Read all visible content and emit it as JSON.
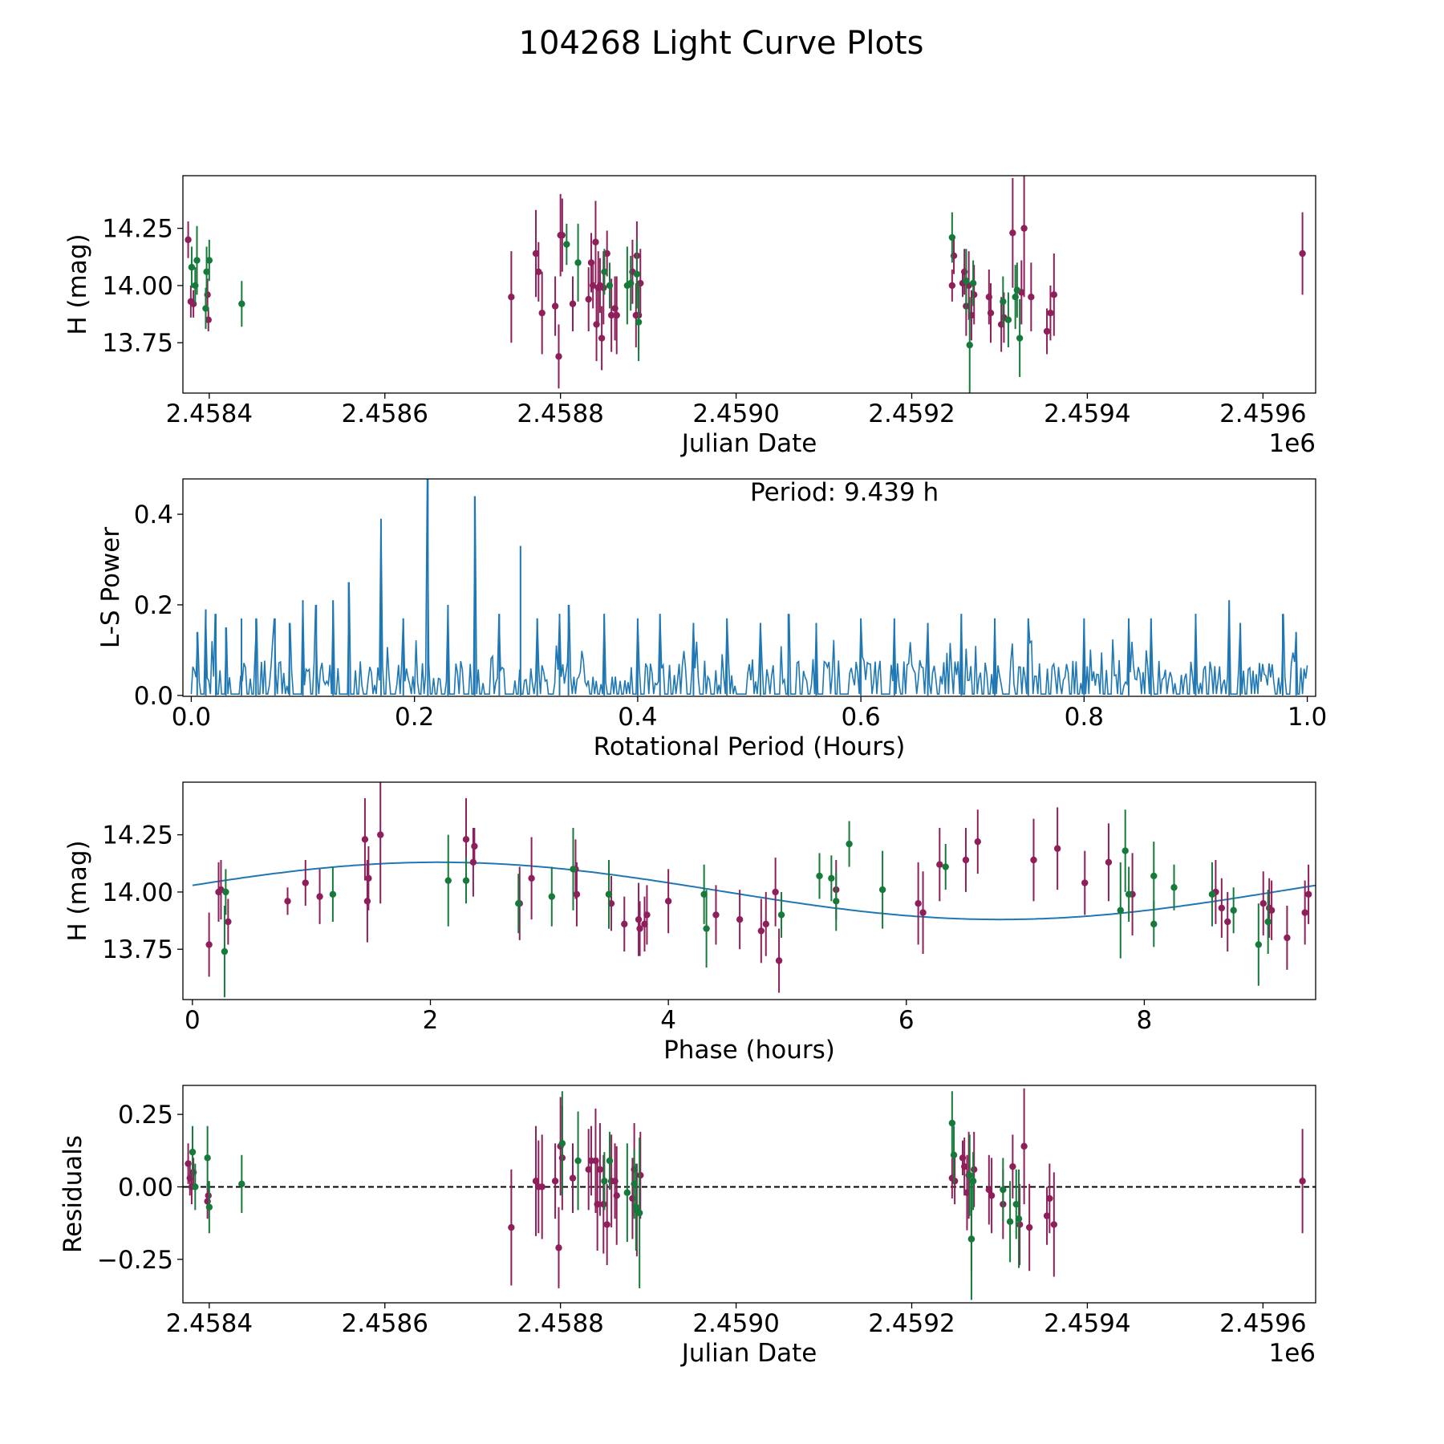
{
  "figure": {
    "title": "104268 Light Curve Plots",
    "colors": {
      "series_a": "#8e1f5a",
      "series_b": "#167a3a",
      "line": "#1f77b4",
      "axis": "#000000"
    }
  },
  "chart_data": [
    {
      "id": "lightcurve",
      "type": "scatter",
      "title": "",
      "xlabel": "Julian Date",
      "ylabel": "H (mag)",
      "xlim": [
        2458370,
        2459660
      ],
      "ylim": [
        13.53,
        14.48
      ],
      "xticks": [
        2458400,
        2458600,
        2458800,
        2459000,
        2459200,
        2459400,
        2459600
      ],
      "xtick_labels": [
        "2.4584",
        "2.4586",
        "2.4588",
        "2.4590",
        "2.4592",
        "2.4594",
        "2.4596"
      ],
      "offset_label": "1e6",
      "yticks": [
        13.75,
        14.0,
        14.25
      ],
      "ytick_labels": [
        "13.75",
        "14.00",
        "14.25"
      ],
      "series": [
        {
          "name": "series_a",
          "x": [
            2458376,
            2458379,
            2458382,
            2458398,
            2458399,
            2458744,
            2458772,
            2458775,
            2458779,
            2458794,
            2458798,
            2458800,
            2458802,
            2458814,
            2458832,
            2458835,
            2458837,
            2458840,
            2458841,
            2458843,
            2458845,
            2458847,
            2458849,
            2458853,
            2458858,
            2458862,
            2458864,
            2458882,
            2458886,
            2458887,
            2458889,
            2458891,
            2459246,
            2459248,
            2459258,
            2459260,
            2459262,
            2459265,
            2459268,
            2459271,
            2459288,
            2459290,
            2459302,
            2459305,
            2459315,
            2459325,
            2459328,
            2459336,
            2459354,
            2459358,
            2459362,
            2459645
          ],
          "y": [
            14.2,
            13.93,
            13.92,
            13.96,
            13.85,
            13.95,
            14.14,
            14.06,
            13.88,
            13.91,
            13.69,
            14.22,
            14.22,
            13.92,
            13.94,
            14.1,
            14.0,
            14.19,
            13.83,
            13.99,
            14.0,
            13.77,
            13.99,
            14.14,
            13.87,
            13.9,
            13.87,
            14.06,
            13.87,
            14.13,
            13.87,
            14.01,
            14.0,
            14.13,
            14.01,
            14.06,
            13.91,
            14.0,
            13.87,
            13.96,
            13.95,
            13.88,
            13.83,
            13.86,
            14.23,
            13.97,
            14.25,
            13.95,
            13.8,
            13.88,
            13.96,
            14.14
          ],
          "err": [
            0.08,
            0.07,
            0.06,
            0.07,
            0.05,
            0.2,
            0.19,
            0.13,
            0.18,
            0.13,
            0.14,
            0.18,
            0.16,
            0.12,
            0.14,
            0.13,
            0.1,
            0.18,
            0.16,
            0.16,
            0.12,
            0.14,
            0.16,
            0.1,
            0.16,
            0.14,
            0.17,
            0.14,
            0.14,
            0.15,
            0.15,
            0.15,
            0.07,
            0.08,
            0.06,
            0.1,
            0.13,
            0.15,
            0.11,
            0.13,
            0.12,
            0.13,
            0.12,
            0.11,
            0.24,
            0.14,
            0.3,
            0.15,
            0.1,
            0.12,
            0.18,
            0.18
          ]
        },
        {
          "name": "series_b",
          "x": [
            2458380,
            2458384,
            2458386,
            2458396,
            2458397,
            2458400,
            2458437,
            2458807,
            2458820,
            2458850,
            2458856,
            2458876,
            2458880,
            2458887,
            2458889,
            2459246,
            2459262,
            2459266,
            2459270,
            2459304,
            2459310,
            2459318,
            2459320,
            2459323
          ],
          "y": [
            14.08,
            14.0,
            14.11,
            13.9,
            14.06,
            14.11,
            13.92,
            14.18,
            14.1,
            14.06,
            14.0,
            14.0,
            14.01,
            14.05,
            13.84,
            14.21,
            14.02,
            13.74,
            14.01,
            13.93,
            13.85,
            13.95,
            13.98,
            13.77
          ],
          "err": [
            0.09,
            0.08,
            0.15,
            0.09,
            0.11,
            0.09,
            0.1,
            0.09,
            0.17,
            0.1,
            0.1,
            0.17,
            0.12,
            0.15,
            0.17,
            0.11,
            0.14,
            0.21,
            0.1,
            0.11,
            0.12,
            0.14,
            0.12,
            0.17
          ]
        }
      ]
    },
    {
      "id": "periodogram",
      "type": "line",
      "title": "",
      "xlabel": "Rotational Period (Hours)",
      "ylabel": "L-S Power",
      "xlim": [
        -0.0075,
        1.0075
      ],
      "ylim": [
        -0.002,
        0.478
      ],
      "xticks": [
        0.0,
        0.2,
        0.4,
        0.6,
        0.8,
        1.0
      ],
      "xtick_labels": [
        "0.0",
        "0.2",
        "0.4",
        "0.6",
        "0.8",
        "1.0"
      ],
      "yticks": [
        0.0,
        0.2,
        0.4
      ],
      "ytick_labels": [
        "0.0",
        "0.2",
        "0.4"
      ],
      "annotation": "Period: 9.439 h",
      "baseline_power": 0.06,
      "peaks": {
        "x": [
          0.0053,
          0.013,
          0.022,
          0.031,
          0.045,
          0.058,
          0.075,
          0.088,
          0.1,
          0.112,
          0.127,
          0.141,
          0.17,
          0.19,
          0.212,
          0.23,
          0.254,
          0.276,
          0.295,
          0.31,
          0.33,
          0.338,
          0.37,
          0.4,
          0.42,
          0.45,
          0.48,
          0.51,
          0.535,
          0.56,
          0.6,
          0.63,
          0.66,
          0.69,
          0.72,
          0.75,
          0.8,
          0.84,
          0.86,
          0.9,
          0.93,
          0.94,
          0.978,
          0.99
        ],
        "y": [
          0.14,
          0.19,
          0.18,
          0.15,
          0.17,
          0.17,
          0.17,
          0.16,
          0.21,
          0.2,
          0.21,
          0.25,
          0.39,
          0.17,
          0.478,
          0.2,
          0.44,
          0.18,
          0.33,
          0.17,
          0.18,
          0.2,
          0.18,
          0.17,
          0.18,
          0.16,
          0.17,
          0.16,
          0.18,
          0.16,
          0.17,
          0.17,
          0.16,
          0.18,
          0.17,
          0.17,
          0.17,
          0.17,
          0.17,
          0.18,
          0.21,
          0.16,
          0.18,
          0.14
        ]
      }
    },
    {
      "id": "phased",
      "type": "scatter",
      "title": "",
      "xlabel": "Phase (hours)",
      "ylabel": "H (mag)",
      "xlim": [
        -0.08,
        9.44
      ],
      "ylim": [
        13.53,
        14.48
      ],
      "xticks": [
        0,
        2,
        4,
        6,
        8
      ],
      "xtick_labels": [
        "0",
        "2",
        "4",
        "6",
        "8"
      ],
      "yticks": [
        13.75,
        14.0,
        14.25
      ],
      "ytick_labels": [
        "13.75",
        "14.00",
        "14.25"
      ],
      "model": {
        "period": 9.439,
        "mean": 14.005,
        "amplitude": 0.125,
        "phase_of_max": 2.07
      },
      "series": [
        {
          "name": "series_a",
          "x": [
            0.14,
            0.22,
            0.24,
            0.3,
            0.8,
            0.95,
            1.07,
            1.45,
            1.47,
            1.48,
            1.58,
            2.3,
            2.36,
            2.37,
            2.75,
            2.85,
            3.22,
            3.23,
            3.5,
            3.52,
            3.63,
            3.75,
            3.76,
            3.8,
            3.82,
            4.0,
            4.4,
            4.6,
            4.78,
            4.82,
            4.9,
            4.93,
            5.41,
            6.1,
            6.14,
            6.28,
            6.5,
            6.6,
            7.07,
            7.27,
            7.5,
            7.7,
            7.9,
            8.6,
            8.65,
            8.7,
            9.0,
            9.05,
            9.07,
            9.2,
            9.35,
            9.38
          ],
          "y": [
            13.77,
            14.0,
            14.01,
            13.87,
            13.96,
            14.04,
            13.98,
            14.23,
            13.96,
            14.06,
            14.25,
            14.23,
            14.13,
            14.2,
            13.95,
            14.06,
            14.1,
            13.99,
            13.99,
            13.95,
            13.86,
            13.88,
            13.84,
            13.86,
            13.9,
            13.96,
            13.9,
            13.88,
            13.83,
            13.86,
            14.0,
            13.7,
            14.01,
            13.95,
            13.91,
            14.12,
            14.14,
            14.22,
            14.14,
            14.19,
            14.04,
            14.13,
            13.99,
            14.0,
            13.93,
            13.87,
            13.95,
            13.93,
            13.92,
            13.8,
            13.91,
            13.99
          ],
          "err": [
            0.14,
            0.13,
            0.13,
            0.1,
            0.06,
            0.1,
            0.12,
            0.18,
            0.18,
            0.14,
            0.3,
            0.18,
            0.15,
            0.08,
            0.16,
            0.18,
            0.13,
            0.14,
            0.15,
            0.12,
            0.12,
            0.16,
            0.12,
            0.12,
            0.13,
            0.14,
            0.13,
            0.13,
            0.14,
            0.14,
            0.15,
            0.14,
            0.13,
            0.18,
            0.18,
            0.16,
            0.14,
            0.14,
            0.18,
            0.18,
            0.14,
            0.17,
            0.18,
            0.14,
            0.13,
            0.13,
            0.14,
            0.13,
            0.13,
            0.14,
            0.14,
            0.13
          ]
        },
        {
          "name": "series_b",
          "x": [
            0.27,
            0.28,
            1.18,
            2.15,
            2.3,
            2.74,
            3.02,
            3.2,
            3.5,
            4.3,
            4.32,
            4.95,
            5.27,
            5.37,
            5.41,
            5.52,
            5.8,
            6.33,
            7.8,
            7.84,
            7.87,
            8.08,
            8.08,
            8.25,
            8.57,
            8.75,
            8.96,
            9.04
          ],
          "y": [
            13.74,
            14.0,
            13.99,
            14.05,
            14.05,
            13.95,
            13.98,
            14.1,
            13.99,
            13.99,
            13.84,
            13.9,
            14.07,
            14.06,
            13.96,
            14.21,
            14.01,
            14.11,
            13.92,
            14.18,
            13.99,
            13.86,
            14.07,
            14.02,
            13.99,
            13.92,
            13.77,
            13.87
          ],
          "err": [
            0.2,
            0.1,
            0.12,
            0.2,
            0.1,
            0.13,
            0.13,
            0.18,
            0.15,
            0.13,
            0.17,
            0.1,
            0.1,
            0.1,
            0.13,
            0.1,
            0.17,
            0.1,
            0.21,
            0.18,
            0.12,
            0.1,
            0.15,
            0.1,
            0.14,
            0.1,
            0.18,
            0.14
          ]
        }
      ]
    },
    {
      "id": "residuals",
      "type": "scatter",
      "title": "",
      "xlabel": "Julian Date",
      "ylabel": "Residuals",
      "xlim": [
        2458370,
        2459660
      ],
      "ylim": [
        -0.4,
        0.35
      ],
      "xticks": [
        2458400,
        2458600,
        2458800,
        2459000,
        2459200,
        2459400,
        2459600
      ],
      "xtick_labels": [
        "2.4584",
        "2.4586",
        "2.4588",
        "2.4590",
        "2.4592",
        "2.4594",
        "2.4596"
      ],
      "offset_label": "1e6",
      "yticks": [
        -0.25,
        0.0,
        0.25
      ],
      "ytick_labels": [
        "−0.25",
        "0.00",
        "0.25"
      ],
      "reference_line": 0.0,
      "series": [
        {
          "name": "series_a",
          "x": [
            2458376,
            2458378,
            2458380,
            2458382,
            2458398,
            2458399,
            2458744,
            2458772,
            2458775,
            2458779,
            2458794,
            2458798,
            2458800,
            2458802,
            2458814,
            2458832,
            2458835,
            2458840,
            2458842,
            2458845,
            2458849,
            2458853,
            2458858,
            2458862,
            2458864,
            2458882,
            2458884,
            2458887,
            2458891,
            2459246,
            2459249,
            2459258,
            2459260,
            2459263,
            2459265,
            2459268,
            2459271,
            2459288,
            2459291,
            2459304,
            2459315,
            2459323,
            2459328,
            2459334,
            2459354,
            2459357,
            2459362,
            2459645
          ],
          "y": [
            0.08,
            0.03,
            0.0,
            0.05,
            -0.05,
            -0.03,
            -0.14,
            0.02,
            0.0,
            0.0,
            0.02,
            -0.21,
            0.14,
            0.1,
            0.03,
            0.06,
            0.09,
            0.09,
            -0.06,
            0.06,
            -0.06,
            -0.13,
            0.02,
            0.02,
            -0.03,
            -0.04,
            0.06,
            -0.08,
            0.04,
            0.03,
            0.02,
            0.1,
            0.07,
            -0.02,
            0.04,
            -0.18,
            0.06,
            -0.01,
            -0.03,
            -0.06,
            0.07,
            -0.13,
            0.14,
            -0.14,
            -0.1,
            -0.04,
            -0.13,
            0.02
          ],
          "err": [
            0.07,
            0.06,
            0.06,
            0.05,
            0.06,
            0.05,
            0.2,
            0.19,
            0.16,
            0.18,
            0.13,
            0.14,
            0.17,
            0.18,
            0.12,
            0.14,
            0.12,
            0.18,
            0.16,
            0.16,
            0.17,
            0.14,
            0.16,
            0.13,
            0.17,
            0.14,
            0.16,
            0.16,
            0.15,
            0.07,
            0.08,
            0.06,
            0.1,
            0.13,
            0.15,
            0.11,
            0.13,
            0.12,
            0.13,
            0.12,
            0.11,
            0.14,
            0.2,
            0.15,
            0.1,
            0.12,
            0.18,
            0.18
          ]
        },
        {
          "name": "series_b",
          "x": [
            2458381,
            2458384,
            2458398,
            2458400,
            2458437,
            2458802,
            2458820,
            2458850,
            2458856,
            2458876,
            2458884,
            2458886,
            2458890,
            2459246,
            2459248,
            2459266,
            2459268,
            2459270,
            2459304,
            2459312,
            2459319,
            2459322
          ],
          "y": [
            0.12,
            0.0,
            0.1,
            -0.07,
            0.01,
            0.15,
            0.09,
            0.02,
            0.09,
            -0.02,
            0.01,
            -0.07,
            -0.09,
            0.22,
            0.11,
            0.04,
            -0.18,
            0.02,
            -0.01,
            -0.12,
            -0.06,
            -0.11
          ],
          "err": [
            0.09,
            0.08,
            0.11,
            0.09,
            0.1,
            0.18,
            0.17,
            0.1,
            0.1,
            0.17,
            0.12,
            0.15,
            0.26,
            0.11,
            0.1,
            0.14,
            0.21,
            0.1,
            0.11,
            0.14,
            0.12,
            0.17
          ]
        }
      ]
    }
  ]
}
